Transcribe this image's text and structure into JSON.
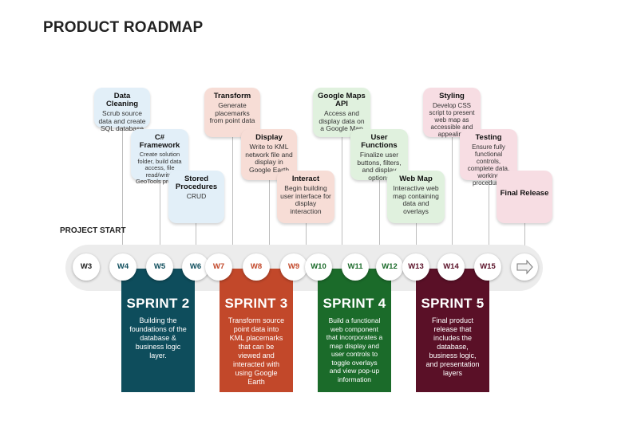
{
  "title": "PRODUCT ROADMAP",
  "project_start": "PROJECT START",
  "cards": [
    {
      "title": "Data Cleaning",
      "body": "Scrub source data and create SQL database"
    },
    {
      "title": "C# Framework",
      "body": "Create solution folder, build data access, file read/write, GeoTools projects"
    },
    {
      "title": "Stored Procedures",
      "body": "CRUD"
    },
    {
      "title": "Transform",
      "body": "Generate placemarks from point data"
    },
    {
      "title": "Display",
      "body": "Write to KML network file and display in Google Earth"
    },
    {
      "title": "Interact",
      "body": "Begin building user interface for display interaction"
    },
    {
      "title": "Google Maps API",
      "body": "Access and display data on a Google Map"
    },
    {
      "title": "User Functions",
      "body": "Finalize user buttons, filters, and display options"
    },
    {
      "title": "Web Map",
      "body": "Interactive web map containing data and overlays"
    },
    {
      "title": "Styling",
      "body": "Develop CSS script to present web map as accessible and appealing"
    },
    {
      "title": "Testing",
      "body": "Ensure fully functional controls, complete data, working procedures"
    },
    {
      "title": "Final Release",
      "body": ""
    }
  ],
  "weeks": [
    "W3",
    "W4",
    "W5",
    "W6",
    "W7",
    "W8",
    "W9",
    "W10",
    "W11",
    "W12",
    "W13",
    "W14",
    "W15"
  ],
  "colors": {
    "blue": "#0e4d5c",
    "orange": "#c2482a",
    "green": "#1b6b2a",
    "maroon": "#5a1027"
  },
  "sprints": [
    {
      "title": "SPRINT 2",
      "desc": "Building the foundations of the database & business logic layer."
    },
    {
      "title": "SPRINT 3",
      "desc": "Transform source point data into KML placemarks that can be viewed and interacted with using Google Earth"
    },
    {
      "title": "SPRINT 4",
      "desc": "Build a functional web component that incorporates a map display and user controls to toggle overlays and view pop-up information"
    },
    {
      "title": "SPRINT 5",
      "desc": "Final product release that includes the database, business logic, and presentation layers"
    }
  ]
}
